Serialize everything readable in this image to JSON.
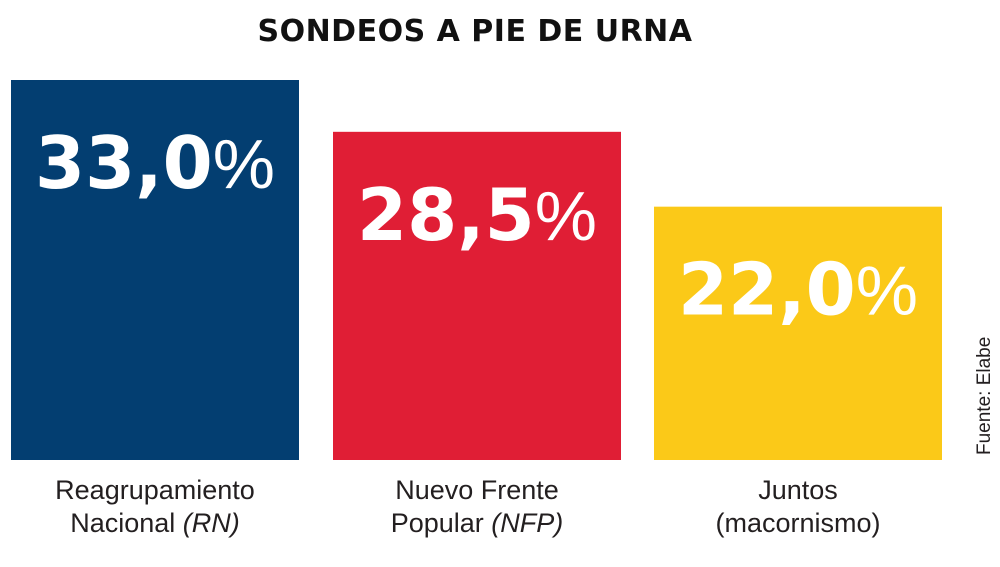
{
  "chart_data": {
    "type": "bar",
    "title": "SONDEOS A PIE DE URNA",
    "categories": [
      {
        "line1": "Reagrupamiento",
        "line2": "Nacional ",
        "abbr": "(RN)"
      },
      {
        "line1": "Nuevo Frente",
        "line2": "Popular ",
        "abbr": "(NFP)"
      },
      {
        "line1": "Juntos",
        "line2": "(macornismo)",
        "abbr": ""
      }
    ],
    "values": [
      33.0,
      28.5,
      22.0
    ],
    "value_labels": [
      "33,0",
      "28,5",
      "22,0"
    ],
    "unit": "%",
    "colors": [
      "#033e71",
      "#e01e35",
      "#fbc918"
    ],
    "source": "Fuente: Elabe",
    "xlabel": "",
    "ylabel": "",
    "ylim": [
      0,
      33.0
    ]
  }
}
